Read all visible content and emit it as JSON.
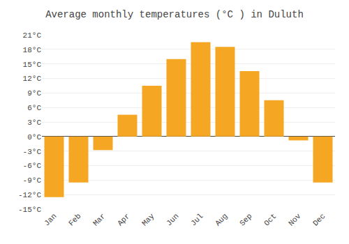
{
  "chart_data": {
    "type": "bar",
    "title": "Average monthly temperatures (°C ) in Duluth",
    "categories": [
      "Jan",
      "Feb",
      "Mar",
      "Apr",
      "May",
      "Jun",
      "Jul",
      "Aug",
      "Sep",
      "Oct",
      "Nov",
      "Dec"
    ],
    "values": [
      -12.5,
      -9.5,
      -2.8,
      4.5,
      10.5,
      16.0,
      19.5,
      18.5,
      13.5,
      7.5,
      -0.8,
      -9.5
    ],
    "color": "#F5A623",
    "ylim": [
      -15,
      21
    ],
    "yticks": [
      {
        "value": -15,
        "label": "-15°C"
      },
      {
        "value": -12,
        "label": "-12°C"
      },
      {
        "value": -9,
        "label": "-9°C"
      },
      {
        "value": -6,
        "label": "-6°C"
      },
      {
        "value": -3,
        "label": "-3°C"
      },
      {
        "value": 0,
        "label": "0°C"
      },
      {
        "value": 3,
        "label": "3°C"
      },
      {
        "value": 6,
        "label": "6°C"
      },
      {
        "value": 9,
        "label": "9°C"
      },
      {
        "value": 12,
        "label": "12°C"
      },
      {
        "value": 15,
        "label": "15°C"
      },
      {
        "value": 18,
        "label": "18°C"
      },
      {
        "value": 21,
        "label": "21°C"
      }
    ],
    "grid": true
  }
}
